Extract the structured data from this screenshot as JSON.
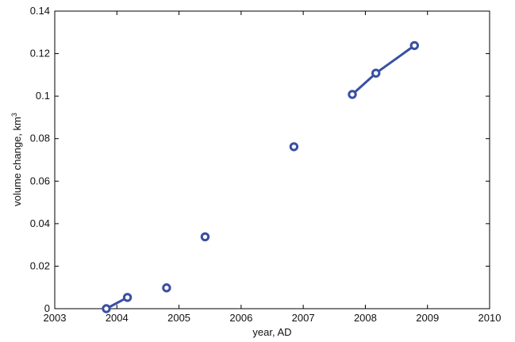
{
  "chart_data": {
    "type": "scatter",
    "title": "",
    "xlabel": "year, AD",
    "ylabel_base": "volume change, km",
    "ylabel_superscript": "3",
    "xlim": [
      2003,
      2010
    ],
    "ylim": [
      0,
      0.14
    ],
    "xticks": [
      2003,
      2004,
      2005,
      2006,
      2007,
      2008,
      2009,
      2010
    ],
    "yticks": [
      0,
      0.02,
      0.04,
      0.06,
      0.08,
      0.1,
      0.12,
      0.14
    ],
    "xtick_labels": [
      "2003",
      "2004",
      "2005",
      "2006",
      "2007",
      "2008",
      "2009",
      "2010"
    ],
    "ytick_labels": [
      "0",
      "0.02",
      "0.04",
      "0.06",
      "0.08",
      "0.1",
      "0.12",
      "0.14"
    ],
    "grid": false,
    "marker_color": "#3a4fa3",
    "points": [
      {
        "x": 2003.83,
        "y": 0.0
      },
      {
        "x": 2004.17,
        "y": 0.0053
      },
      {
        "x": 2004.8,
        "y": 0.0098
      },
      {
        "x": 2005.42,
        "y": 0.0338
      },
      {
        "x": 2006.85,
        "y": 0.0762
      },
      {
        "x": 2007.79,
        "y": 0.1008
      },
      {
        "x": 2008.17,
        "y": 0.1108
      },
      {
        "x": 2008.79,
        "y": 0.1238
      }
    ],
    "segments": [
      [
        0,
        1
      ],
      [
        5,
        6,
        7
      ]
    ]
  }
}
